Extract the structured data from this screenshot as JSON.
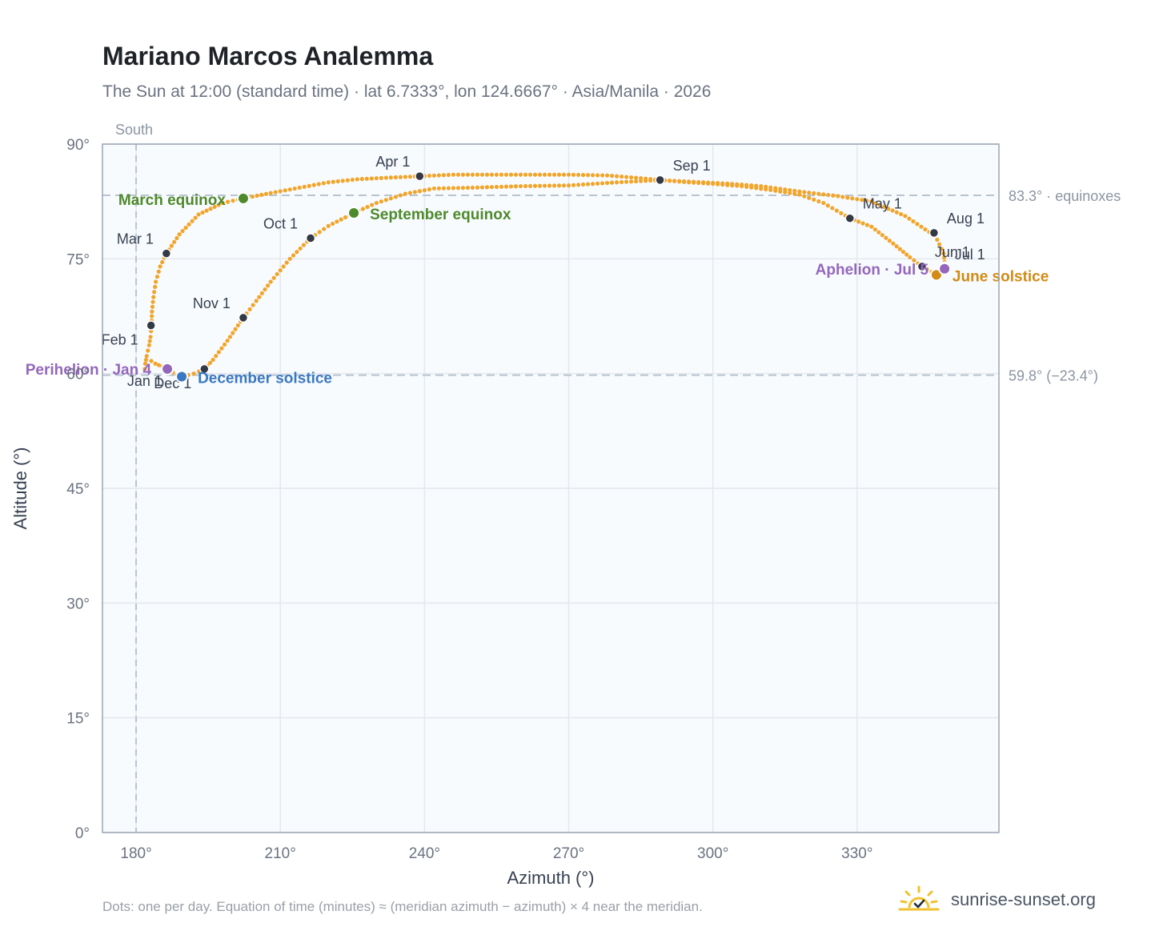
{
  "header": {
    "title": "Mariano Marcos Analemma",
    "subtitle": "The Sun at 12:00 (standard time) · lat 6.7333°, lon 124.6667° · Asia/Manila · 2026"
  },
  "footer": {
    "note": "Dots: one per day. Equation of time (minutes) ≈ (meridian azimuth − azimuth) × 4 near the meridian.",
    "brand": "sunrise-sunset.org"
  },
  "icons": {
    "brand_logo": "sun-horizon-check-icon"
  },
  "colors": {
    "path": "#f2a52b",
    "month_marker": "#333a45",
    "equinox": "#4e8a2c",
    "december_solstice": "#3a78c2",
    "june_solstice": "#d18b16",
    "apsis": "#9467bd",
    "plot_bg": "#f8fbfe",
    "grid": "#e3e8ee",
    "reference_line": "#b8c4d0"
  },
  "chart_data": {
    "type": "scatter",
    "title": "Mariano Marcos Analemma",
    "subtitle": "The Sun at 12:00 (standard time) · lat 6.7333°, lon 124.6667° · Asia/Manila · 2026",
    "xlabel": "Azimuth (°)",
    "ylabel": "Altitude (°)",
    "xlim": [
      173,
      359.5
    ],
    "ylim": [
      0,
      90
    ],
    "xticks": [
      180,
      210,
      240,
      270,
      300,
      330
    ],
    "xtick_labels": [
      "180°",
      "210°",
      "240°",
      "270°",
      "300°",
      "330°"
    ],
    "yticks": [
      0,
      15,
      30,
      45,
      60,
      75,
      90
    ],
    "ytick_labels": [
      "0°",
      "15°",
      "30°",
      "45°",
      "60°",
      "75°",
      "90°"
    ],
    "grid": true,
    "meridian": {
      "azimuth": 180,
      "label": "South"
    },
    "reference_lines": [
      {
        "altitude": 83.3,
        "label": "83.3° · equinoxes"
      },
      {
        "altitude": 59.8,
        "label": "59.8° (−23.4°)"
      }
    ],
    "series": [],
    "path": [
      [
        181.8,
        60.6
      ],
      [
        181.9,
        61.3
      ],
      [
        182.2,
        62.3
      ],
      [
        182.7,
        63.7
      ],
      [
        183.0,
        64.8
      ],
      [
        183.2,
        66.3
      ],
      [
        183.3,
        68.1
      ],
      [
        183.6,
        70.0
      ],
      [
        184.1,
        72.0
      ],
      [
        185.0,
        74.0
      ],
      [
        186.3,
        75.7
      ],
      [
        189.0,
        78.2
      ],
      [
        193.0,
        80.8
      ],
      [
        198.0,
        82.3
      ],
      [
        202.3,
        82.9
      ],
      [
        208.0,
        83.6
      ],
      [
        214.0,
        84.3
      ],
      [
        220.0,
        85.0
      ],
      [
        226.0,
        85.4
      ],
      [
        232.0,
        85.6
      ],
      [
        239.0,
        85.8
      ],
      [
        246.0,
        86.0
      ],
      [
        254.0,
        86.0
      ],
      [
        262.0,
        86.0
      ],
      [
        270.0,
        86.0
      ],
      [
        278.0,
        85.9
      ],
      [
        284.0,
        85.6
      ],
      [
        289.0,
        85.3
      ],
      [
        295.0,
        85.0
      ],
      [
        300.0,
        84.8
      ],
      [
        306.0,
        84.5
      ],
      [
        312.0,
        84.0
      ],
      [
        318.0,
        83.4
      ],
      [
        323.0,
        82.3
      ],
      [
        328.5,
        80.3
      ],
      [
        333.0,
        79.2
      ],
      [
        337.5,
        77.0
      ],
      [
        341.0,
        75.2
      ],
      [
        343.5,
        74.0
      ],
      [
        345.5,
        73.3
      ],
      [
        346.0,
        73.0
      ],
      [
        347.0,
        73.0
      ],
      [
        347.8,
        73.2
      ],
      [
        348.3,
        74.0
      ],
      [
        348.0,
        75.7
      ],
      [
        346.2,
        78.1
      ],
      [
        345.0,
        78.5
      ],
      [
        340.0,
        80.6
      ],
      [
        333.0,
        82.5
      ],
      [
        326.0,
        83.2
      ],
      [
        318.0,
        83.8
      ],
      [
        310.0,
        84.5
      ],
      [
        304.0,
        84.8
      ],
      [
        298.0,
        85.0
      ],
      [
        289.0,
        85.3
      ],
      [
        280.0,
        85.0
      ],
      [
        270.0,
        84.6
      ],
      [
        260.0,
        84.5
      ],
      [
        250.0,
        84.3
      ],
      [
        242.0,
        84.2
      ],
      [
        236.0,
        83.5
      ],
      [
        230.0,
        82.3
      ],
      [
        225.3,
        81.0
      ],
      [
        220.0,
        79.3
      ],
      [
        216.3,
        77.7
      ],
      [
        212.0,
        75.0
      ],
      [
        208.0,
        72.0
      ],
      [
        205.0,
        69.5
      ],
      [
        202.3,
        67.3
      ],
      [
        199.0,
        64.3
      ],
      [
        196.0,
        61.8
      ],
      [
        194.2,
        60.6
      ],
      [
        192.0,
        60.0
      ],
      [
        189.7,
        59.6
      ],
      [
        188.5,
        59.8
      ],
      [
        186.8,
        60.5
      ],
      [
        185.5,
        60.9
      ],
      [
        184.0,
        61.3
      ],
      [
        182.3,
        62.0
      ]
    ],
    "month_markers": [
      {
        "label": "Jan 1",
        "az": 186.8,
        "alt": 60.5
      },
      {
        "label": "Feb 1",
        "az": 183.1,
        "alt": 66.3
      },
      {
        "label": "Mar 1",
        "az": 186.3,
        "alt": 75.7
      },
      {
        "label": "Apr 1",
        "az": 239.0,
        "alt": 85.8
      },
      {
        "label": "May 1",
        "az": 328.5,
        "alt": 80.3
      },
      {
        "label": "Jun 1",
        "az": 343.5,
        "alt": 74.0
      },
      {
        "label": "Jul 1",
        "az": 348.3,
        "alt": 74.0
      },
      {
        "label": "Aug 1",
        "az": 346.0,
        "alt": 78.4
      },
      {
        "label": "Sep 1",
        "az": 289.0,
        "alt": 85.3
      },
      {
        "label": "Oct 1",
        "az": 216.3,
        "alt": 77.7
      },
      {
        "label": "Nov 1",
        "az": 202.3,
        "alt": 67.3
      },
      {
        "label": "Dec 1",
        "az": 194.2,
        "alt": 60.6
      }
    ],
    "events": [
      {
        "label": "March equinox",
        "az": 202.3,
        "alt": 82.9,
        "kind": "equinox"
      },
      {
        "label": "September equinox",
        "az": 225.3,
        "alt": 81.0,
        "kind": "equinox"
      },
      {
        "label": "December solstice",
        "az": 189.5,
        "alt": 59.6,
        "kind": "december_solstice"
      },
      {
        "label": "June solstice",
        "az": 346.5,
        "alt": 72.9,
        "kind": "june_solstice"
      },
      {
        "label": "Perihelion · Jan 4",
        "az": 186.5,
        "alt": 60.6,
        "kind": "apsis"
      },
      {
        "label": "Aphelion · Jul 5",
        "az": 348.2,
        "alt": 73.7,
        "kind": "apsis"
      }
    ]
  }
}
